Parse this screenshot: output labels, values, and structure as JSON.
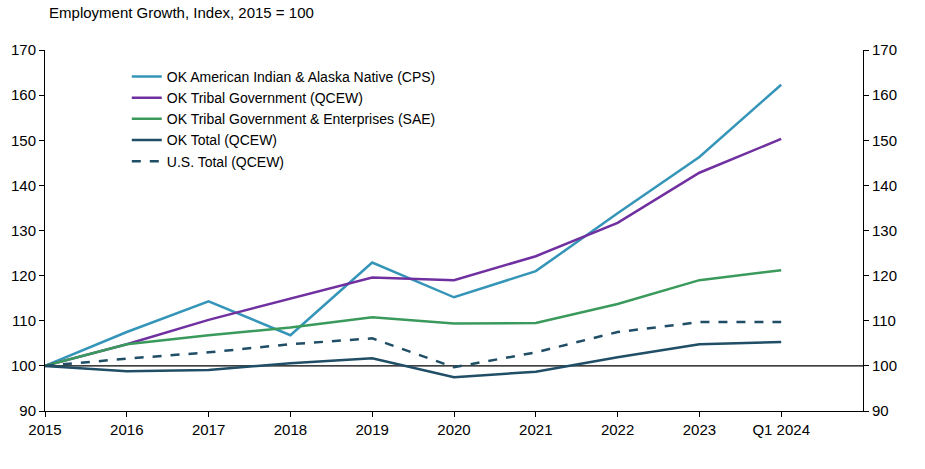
{
  "chart_data": {
    "type": "line",
    "title": "Employment Growth, Index, 2015 = 100",
    "categories": [
      "2015",
      "2016",
      "2017",
      "2018",
      "2019",
      "2020",
      "2021",
      "2022",
      "2023",
      "Q1 2024"
    ],
    "series": [
      {
        "name": "OK American Indian & Alaska Native (CPS)",
        "color": "#3595b8",
        "line_style": "solid",
        "values": [
          100,
          107.5,
          114.3,
          106.8,
          122.9,
          115.2,
          121,
          133.8,
          146.3,
          162.3
        ]
      },
      {
        "name": "OK Tribal Government (QCEW)",
        "color": "#7030a0",
        "line_style": "solid",
        "values": [
          100,
          104.8,
          110.2,
          114.9,
          119.6,
          119,
          124.3,
          131.7,
          142.8,
          150.3
        ]
      },
      {
        "name": "OK Tribal Government & Enterprises (SAE)",
        "color": "#3a9a5c",
        "line_style": "solid",
        "values": [
          100,
          104.8,
          106.8,
          108.5,
          110.8,
          109.4,
          109.5,
          113.7,
          119,
          121.2
        ]
      },
      {
        "name": "OK Total (QCEW)",
        "color": "#1f4e66",
        "line_style": "solid",
        "values": [
          100,
          98.8,
          99.1,
          100.6,
          101.7,
          97.5,
          98.7,
          101.9,
          104.8,
          105.3
        ]
      },
      {
        "name": "U.S. Total (QCEW)",
        "color": "#1f4e66",
        "line_style": "dash",
        "values": [
          100,
          101.6,
          103,
          104.8,
          106.1,
          99.7,
          103,
          107.5,
          109.7,
          109.7
        ]
      }
    ],
    "baseline": 100,
    "ylim": [
      90,
      170
    ],
    "yticks": [
      90,
      100,
      110,
      120,
      130,
      140,
      150,
      160,
      170
    ],
    "y2lim": [
      90,
      170
    ],
    "y2ticks": [
      90,
      100,
      110,
      120,
      130,
      140,
      150,
      160,
      170
    ],
    "grid": false,
    "legend": "top-left"
  }
}
